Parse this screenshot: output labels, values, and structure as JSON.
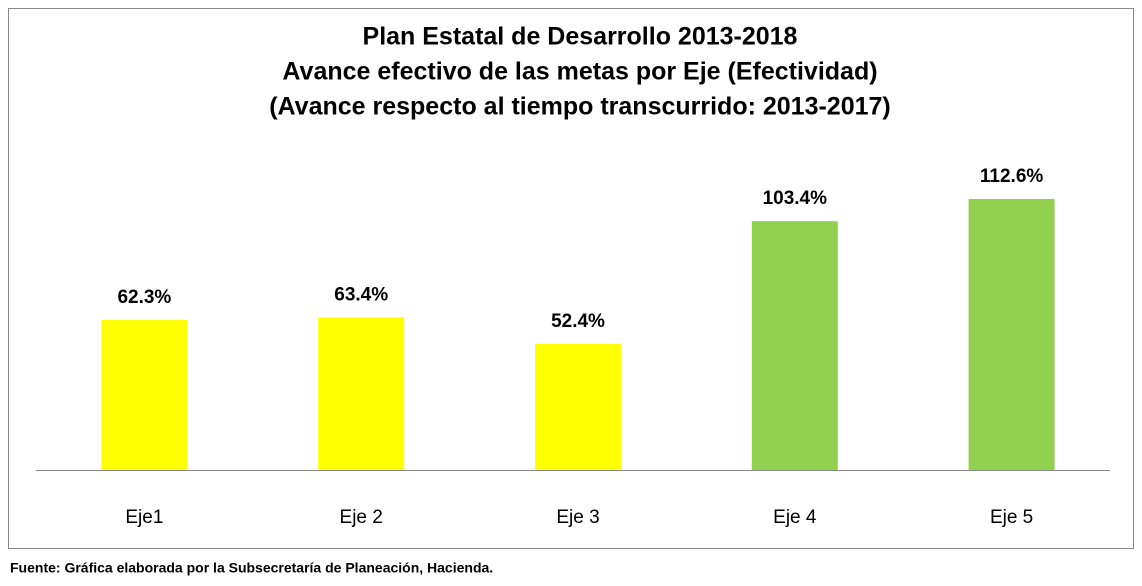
{
  "chart_data": {
    "type": "bar",
    "title": [
      "Plan Estatal de Desarrollo 2013-2018",
      "Avance efectivo de las metas por Eje (Efectividad)",
      "(Avance respecto al tiempo transcurrido: 2013-2017)"
    ],
    "categories": [
      "Eje1",
      "Eje 2",
      "Eje 3",
      "Eje 4",
      "Eje 5"
    ],
    "values": [
      62.3,
      63.4,
      52.4,
      103.4,
      112.6
    ],
    "value_labels": [
      "62.3%",
      "63.4%",
      "52.4%",
      "103.4%",
      "112.6%"
    ],
    "colors": [
      "#ffff00",
      "#ffff00",
      "#ffff00",
      "#92d050",
      "#92d050"
    ],
    "source": "Fuente: Gráfica elaborada por la Subsecretaría de Planeación, Hacienda."
  }
}
